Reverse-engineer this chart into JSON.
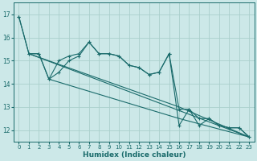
{
  "xlabel": "Humidex (Indice chaleur)",
  "background_color": "#cce8e8",
  "grid_color": "#aad0cc",
  "line_color": "#1a6b6b",
  "xlim": [
    -0.5,
    23.5
  ],
  "ylim": [
    11.5,
    17.5
  ],
  "xticks": [
    0,
    1,
    2,
    3,
    4,
    5,
    6,
    7,
    8,
    9,
    10,
    11,
    12,
    13,
    14,
    15,
    16,
    17,
    18,
    19,
    20,
    21,
    22,
    23
  ],
  "yticks": [
    12,
    13,
    14,
    15,
    16,
    17
  ],
  "series_zigzag1": {
    "x": [
      0,
      1,
      2,
      3,
      4,
      5,
      6,
      7,
      8,
      9,
      10,
      11,
      12,
      13,
      14,
      15,
      16,
      17,
      18,
      19,
      20,
      21,
      22,
      23
    ],
    "y": [
      16.9,
      15.3,
      15.3,
      14.2,
      14.5,
      15.0,
      15.2,
      15.8,
      15.3,
      15.3,
      15.2,
      14.8,
      14.7,
      14.4,
      14.5,
      15.3,
      12.2,
      12.9,
      12.2,
      12.5,
      12.2,
      12.1,
      12.1,
      11.7
    ]
  },
  "series_zigzag2": {
    "x": [
      0,
      1,
      2,
      3,
      4,
      5,
      6,
      7,
      8,
      9,
      10,
      11,
      12,
      13,
      14,
      15,
      16,
      17,
      18,
      19,
      20,
      21,
      22,
      23
    ],
    "y": [
      16.9,
      15.3,
      15.3,
      14.2,
      15.0,
      15.2,
      15.3,
      15.8,
      15.3,
      15.3,
      15.2,
      14.8,
      14.7,
      14.4,
      14.5,
      15.3,
      12.9,
      12.9,
      12.5,
      12.5,
      12.2,
      12.1,
      12.1,
      11.7
    ]
  },
  "series_line1": {
    "x": [
      1,
      23
    ],
    "y": [
      15.3,
      11.7
    ]
  },
  "series_line2": {
    "x": [
      1,
      16,
      23
    ],
    "y": [
      15.3,
      13.0,
      11.7
    ]
  },
  "series_line3": {
    "x": [
      3,
      16,
      23
    ],
    "y": [
      14.2,
      12.5,
      11.7
    ]
  }
}
